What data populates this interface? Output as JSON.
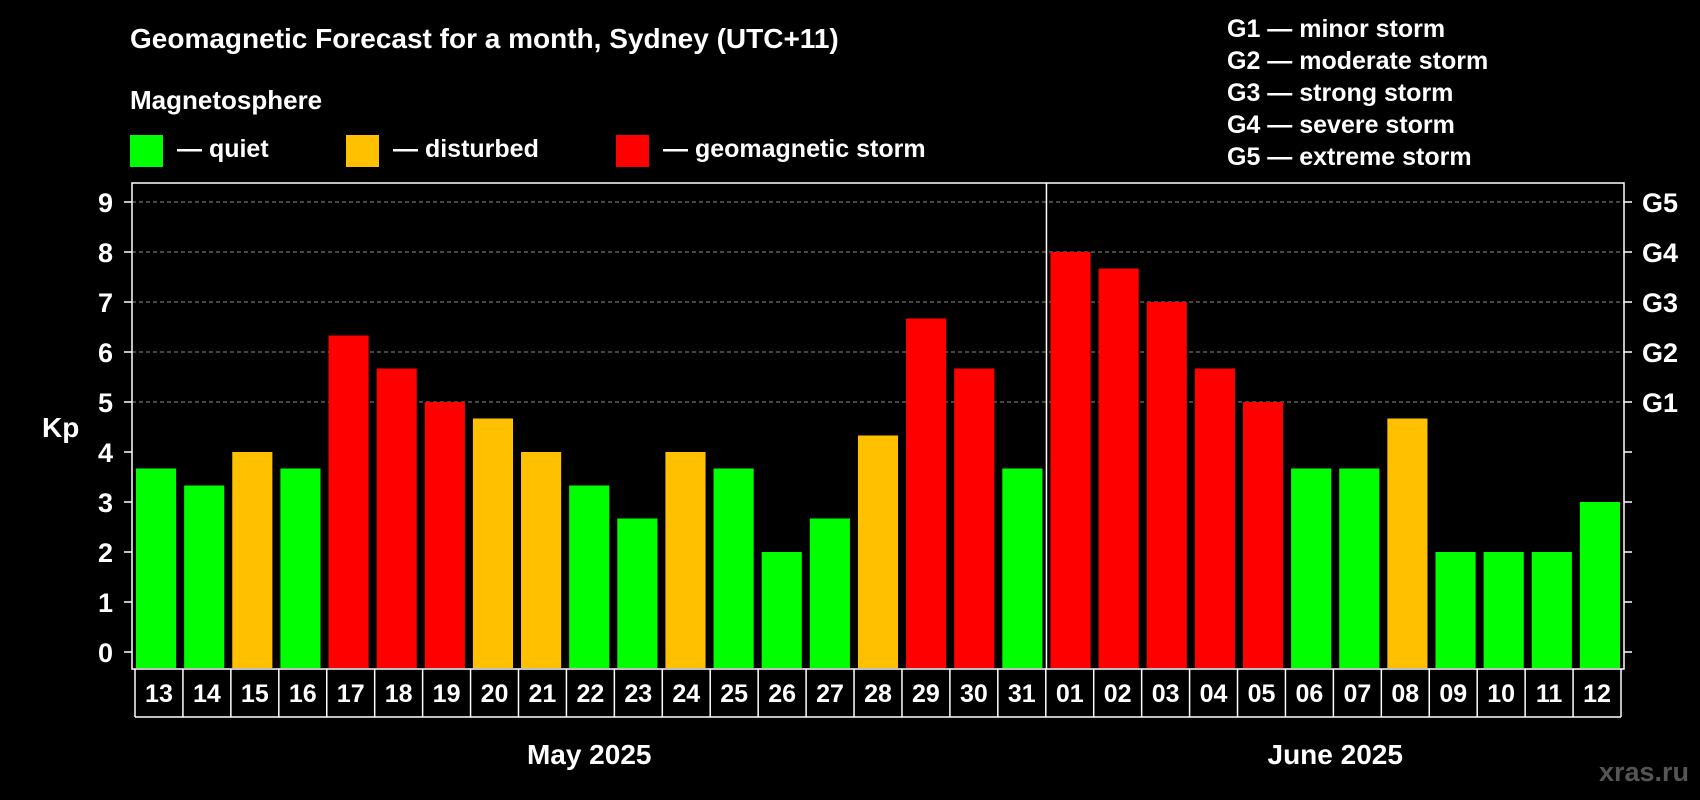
{
  "chart_data": {
    "type": "bar",
    "title": "Geomagnetic Forecast for a month, Sydney (UTC+11)",
    "legend_title": "Magnetosphere",
    "legend": [
      {
        "key": "quiet",
        "label": "— quiet",
        "color": "#00ff00"
      },
      {
        "key": "disturbed",
        "label": "— disturbed",
        "color": "#ffc000"
      },
      {
        "key": "storm",
        "label": "— geomagnetic storm",
        "color": "#ff0000"
      }
    ],
    "storm_scale": [
      "G1 — minor storm",
      "G2 — moderate storm",
      "G3 — strong storm",
      "G4 — severe storm",
      "G5 — extreme storm"
    ],
    "ylabel": "Kp",
    "ylim": [
      0,
      9
    ],
    "yticks": [
      "0",
      "1",
      "2",
      "3",
      "4",
      "5",
      "6",
      "7",
      "8",
      "9"
    ],
    "right_ticks": [
      {
        "kp": 5,
        "label": "G1"
      },
      {
        "kp": 6,
        "label": "G2"
      },
      {
        "kp": 7,
        "label": "G3"
      },
      {
        "kp": 8,
        "label": "G4"
      },
      {
        "kp": 9,
        "label": "G5"
      }
    ],
    "grid_levels": [
      5,
      6,
      7,
      8,
      9
    ],
    "categories": [
      "13",
      "14",
      "15",
      "16",
      "17",
      "18",
      "19",
      "20",
      "21",
      "22",
      "23",
      "24",
      "25",
      "26",
      "27",
      "28",
      "29",
      "30",
      "31",
      "01",
      "02",
      "03",
      "04",
      "05",
      "06",
      "07",
      "08",
      "09",
      "10",
      "11",
      "12"
    ],
    "values": [
      3.67,
      3.33,
      4,
      3.67,
      6.33,
      5.67,
      5,
      4.67,
      4,
      3.33,
      2.67,
      4,
      3.67,
      2,
      2.67,
      4.33,
      6.67,
      5.67,
      3.67,
      8,
      7.67,
      7,
      5.67,
      5,
      3.67,
      3.67,
      4.67,
      2,
      2,
      2,
      3
    ],
    "levels": [
      "quiet",
      "quiet",
      "disturbed",
      "quiet",
      "storm",
      "storm",
      "storm",
      "disturbed",
      "disturbed",
      "quiet",
      "quiet",
      "disturbed",
      "quiet",
      "quiet",
      "quiet",
      "disturbed",
      "storm",
      "storm",
      "quiet",
      "storm",
      "storm",
      "storm",
      "storm",
      "storm",
      "quiet",
      "quiet",
      "disturbed",
      "quiet",
      "quiet",
      "quiet",
      "quiet"
    ],
    "months": [
      {
        "label": "May 2025",
        "count": 19
      },
      {
        "label": "June 2025",
        "count": 12
      }
    ],
    "watermark": "xras.ru"
  }
}
